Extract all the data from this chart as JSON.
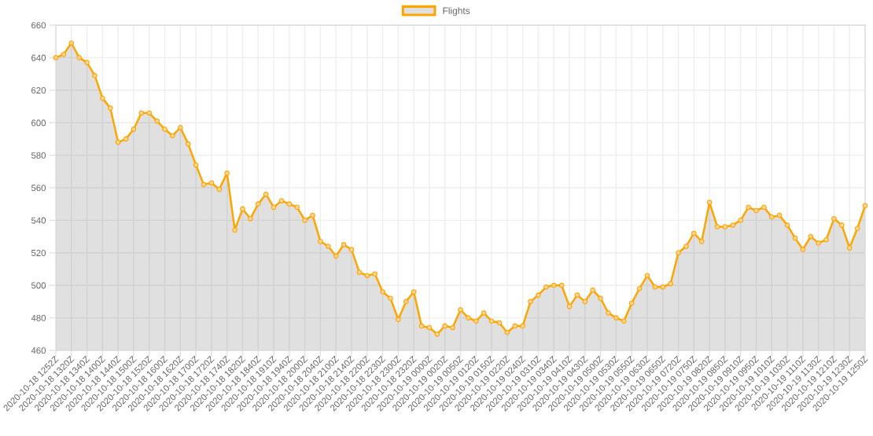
{
  "chart_data": {
    "type": "area",
    "categories": [
      "2020-10-18 1252Z",
      null,
      "2020-10-18 1320Z",
      null,
      "2020-10-18 1340Z",
      null,
      "2020-10-18 1400Z",
      null,
      "2020-10-18 1440Z",
      null,
      "2020-10-18 1500Z",
      null,
      "2020-10-18 1520Z",
      null,
      "2020-10-18 1600Z",
      null,
      "2020-10-18 1620Z",
      null,
      "2020-10-18 1700Z",
      null,
      "2020-10-18 1720Z",
      null,
      "2020-10-18 1740Z",
      null,
      "2020-10-18 1820Z",
      null,
      "2020-10-18 1840Z",
      null,
      "2020-10-18 1910Z",
      null,
      "2020-10-18 1940Z",
      null,
      "2020-10-18 2000Z",
      null,
      "2020-10-18 2040Z",
      null,
      "2020-10-18 2100Z",
      null,
      "2020-10-18 2140Z",
      null,
      "2020-10-18 2200Z",
      null,
      "2020-10-18 2230Z",
      null,
      "2020-10-18 2300Z",
      null,
      "2020-10-18 2320Z",
      null,
      "2020-10-19 0000Z",
      null,
      "2020-10-19 0020Z",
      null,
      "2020-10-19 0050Z",
      null,
      "2020-10-19 0120Z",
      null,
      "2020-10-19 0150Z",
      null,
      "2020-10-19 0220Z",
      null,
      "2020-10-19 0240Z",
      null,
      "2020-10-19 0310Z",
      null,
      "2020-10-19 0340Z",
      null,
      "2020-10-19 0410Z",
      null,
      "2020-10-19 0430Z",
      null,
      "2020-10-19 0500Z",
      null,
      "2020-10-19 0530Z",
      null,
      "2020-10-19 0550Z",
      null,
      "2020-10-19 0630Z",
      null,
      "2020-10-19 0650Z",
      null,
      "2020-10-19 0720Z",
      null,
      "2020-10-19 0750Z",
      null,
      "2020-10-19 0820Z",
      null,
      "2020-10-19 0850Z",
      null,
      "2020-10-19 0910Z",
      null,
      "2020-10-19 0950Z",
      null,
      "2020-10-19 1010Z",
      null,
      "2020-10-19 1030Z",
      null,
      "2020-10-19 1110Z",
      null,
      "2020-10-19 1130Z",
      null,
      "2020-10-19 1210Z",
      null,
      "2020-10-19 1230Z",
      null,
      "2020-10-19 1250Z"
    ],
    "series": [
      {
        "name": "Flights",
        "color": "#ffa500",
        "values": [
          640,
          642,
          649,
          640,
          637,
          629,
          615,
          609,
          588,
          590,
          596,
          606,
          606,
          601,
          596,
          592,
          597,
          587,
          574,
          562,
          563,
          559,
          569,
          534,
          547,
          541,
          550,
          556,
          548,
          552,
          550,
          548,
          540,
          543,
          527,
          524,
          518,
          525,
          522,
          508,
          506,
          507,
          496,
          492,
          479,
          490,
          496,
          475,
          474,
          470,
          475,
          474,
          485,
          480,
          478,
          483,
          478,
          477,
          471,
          475,
          475,
          490,
          494,
          499,
          500,
          500,
          487,
          494,
          490,
          497,
          492,
          483,
          480,
          478,
          489,
          498,
          506,
          499,
          499,
          501,
          520,
          524,
          532,
          527,
          551,
          536,
          536,
          537,
          540,
          548,
          546,
          548,
          542,
          543,
          537,
          529,
          522,
          530,
          526,
          528,
          541,
          537,
          523,
          535,
          549
        ]
      }
    ],
    "ylim": [
      460,
      660
    ],
    "yticks": [
      460,
      480,
      500,
      520,
      540,
      560,
      580,
      600,
      620,
      640,
      660
    ],
    "grid": true,
    "legend": "top",
    "marker": "circle",
    "line_style": "solid"
  }
}
